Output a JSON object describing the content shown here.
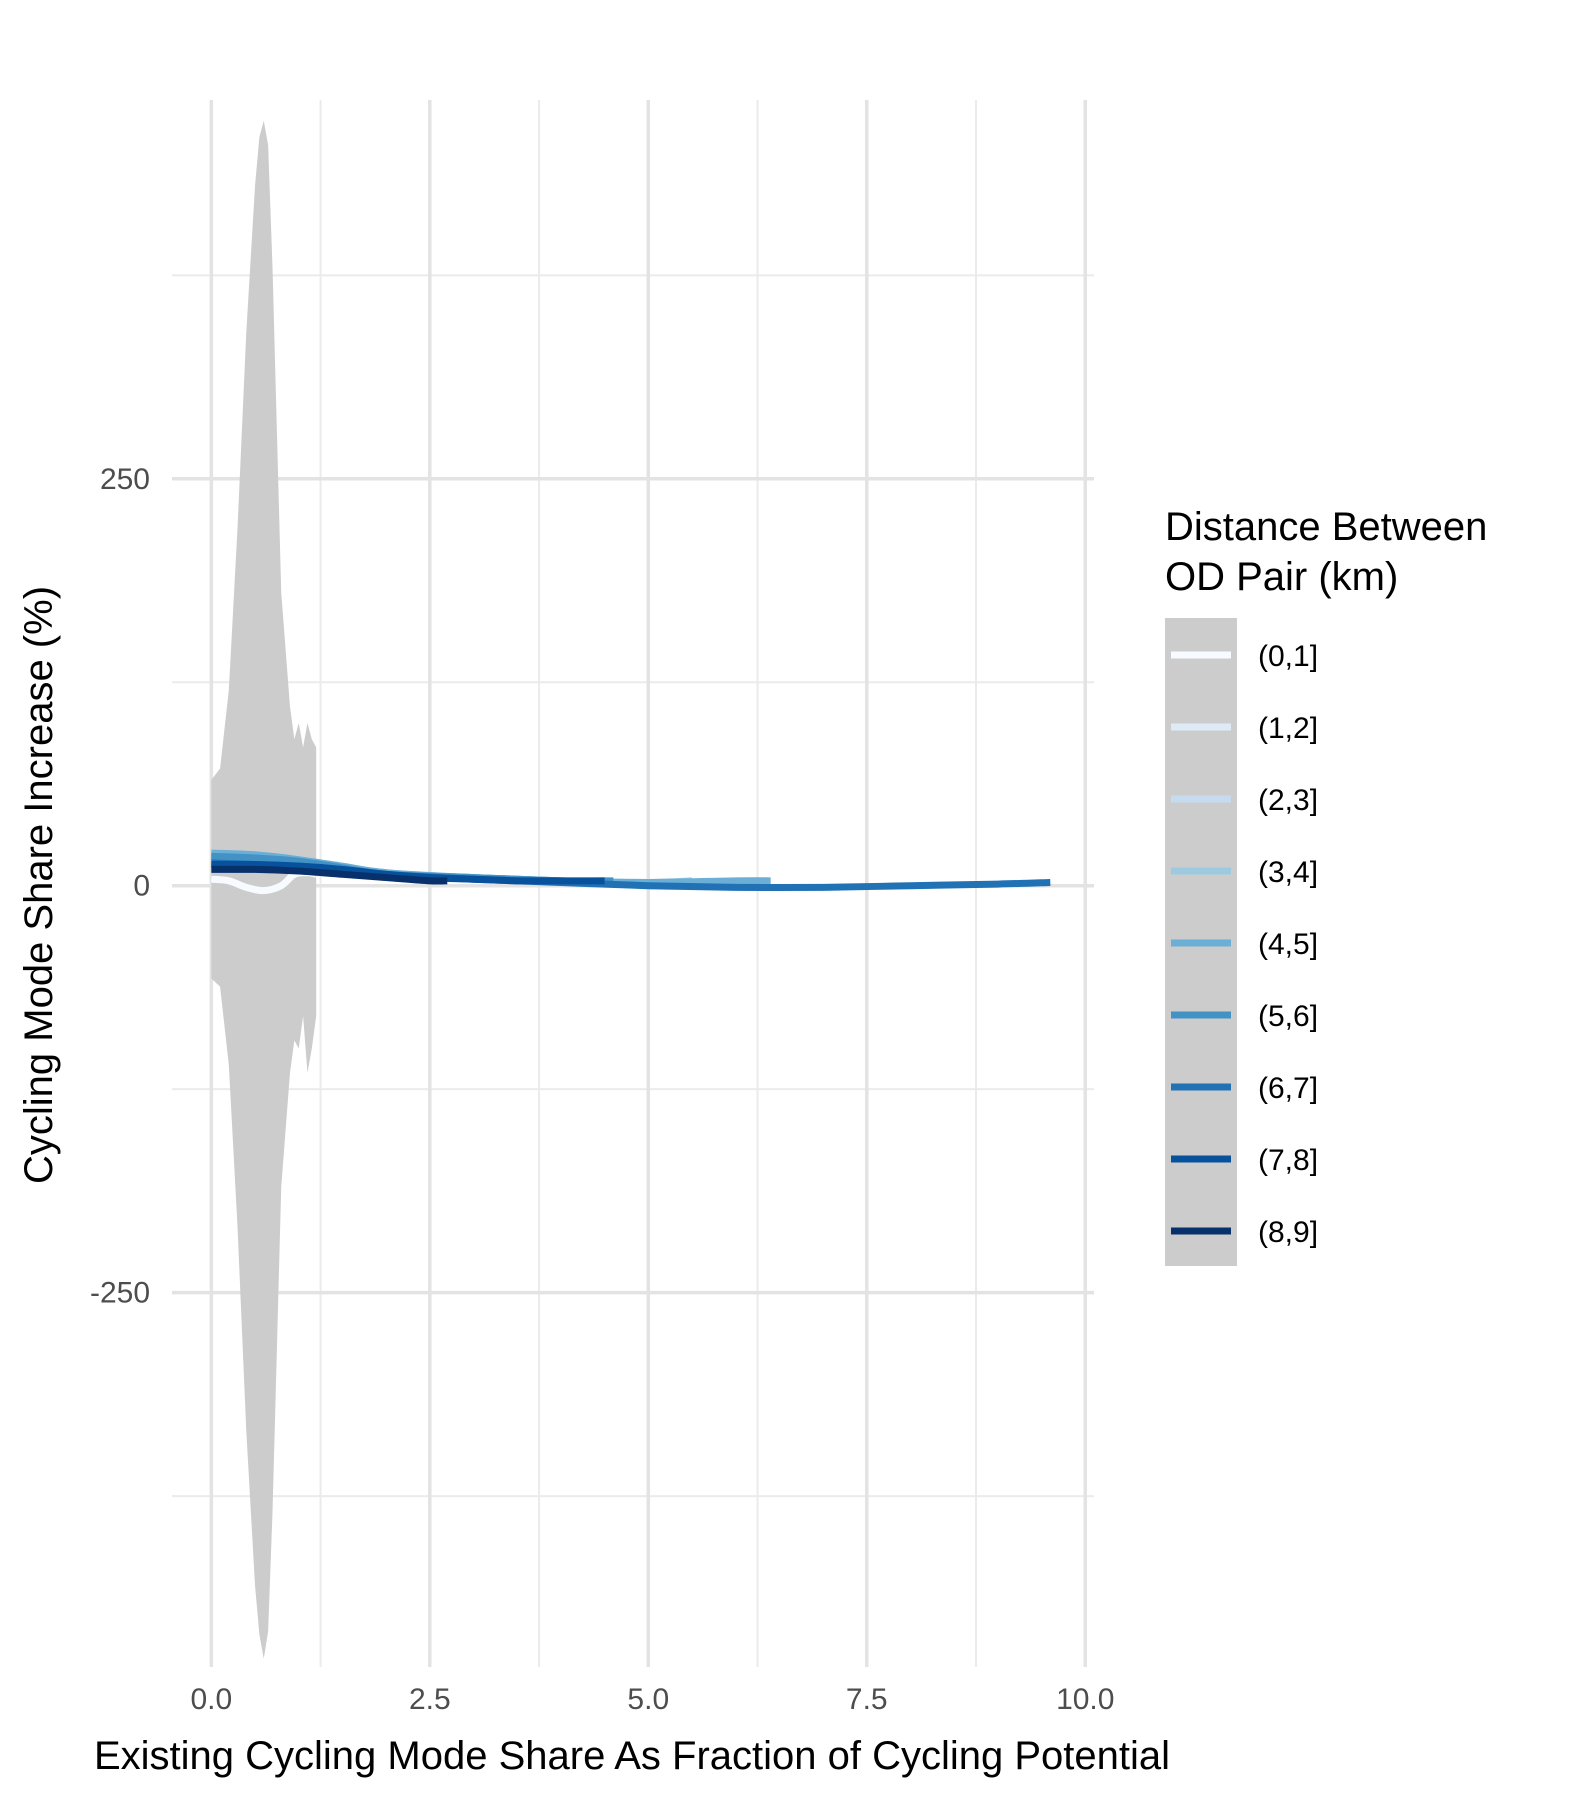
{
  "chart_data": {
    "type": "line",
    "xlabel": "Existing Cycling Mode Share As Fraction of Cycling Potential",
    "ylabel": "Cycling Mode Share Increase (%)",
    "xlim": [
      -0.45,
      10.1
    ],
    "ylim": [
      -480,
      495
    ],
    "x_ticks": [
      0,
      2.5,
      5,
      7.5,
      10
    ],
    "x_tick_labels": [
      "0.0",
      "2.5",
      "5.0",
      "7.5",
      "10.0"
    ],
    "x_minor": [
      1.25,
      3.75,
      6.25,
      8.75
    ],
    "y_ticks": [
      -250,
      0,
      250
    ],
    "y_tick_labels": [
      "-250",
      "0",
      "250"
    ],
    "y_minor": [
      -375,
      -125,
      125,
      375
    ],
    "grid": true,
    "ribbon": {
      "color": "#cccccc",
      "x": [
        0.0,
        0.1,
        0.2,
        0.3,
        0.4,
        0.5,
        0.55,
        0.6,
        0.65,
        0.7,
        0.8,
        0.9,
        0.95,
        1.0,
        1.05,
        1.1,
        1.15,
        1.2
      ],
      "upper": [
        65,
        72,
        120,
        220,
        340,
        430,
        460,
        470,
        455,
        380,
        180,
        110,
        90,
        100,
        85,
        100,
        90,
        85
      ],
      "lower": [
        -57,
        -62,
        -110,
        -210,
        -335,
        -430,
        -460,
        -475,
        -458,
        -385,
        -185,
        -115,
        -95,
        -100,
        -80,
        -115,
        -100,
        -80
      ]
    },
    "legend": {
      "title": [
        "Distance Between",
        "OD Pair (km)"
      ],
      "position": "right"
    },
    "series": [
      {
        "name": "(0,1]",
        "color": "#f7fbff",
        "x": [
          0.0,
          0.2,
          0.4,
          0.6,
          0.8,
          0.95,
          1.1,
          1.2
        ],
        "y": [
          4,
          3,
          -1,
          -3,
          0,
          7,
          8,
          7
        ]
      },
      {
        "name": "(1,2]",
        "color": "#deebf7",
        "x": [
          0.0,
          0.3,
          0.6,
          0.9,
          1.2,
          1.5
        ],
        "y": [
          12,
          12,
          11,
          10,
          8,
          7
        ]
      },
      {
        "name": "(2,3]",
        "color": "#c6dbef",
        "x": [
          0.0,
          0.5,
          1.0,
          1.5,
          2.0
        ],
        "y": [
          15,
          14,
          12,
          9,
          6
        ]
      },
      {
        "name": "(3,4]",
        "color": "#9ecae1",
        "x": [
          0.0,
          0.5,
          1.0,
          1.5,
          2.0,
          2.5,
          3.0,
          4.0,
          5.0,
          5.5
        ],
        "y": [
          17,
          17,
          15,
          11,
          8,
          6,
          5,
          3,
          2,
          3
        ]
      },
      {
        "name": "(4,5]",
        "color": "#6baed6",
        "x": [
          0.0,
          0.5,
          1.0,
          1.5,
          2.0,
          3.0,
          4.0,
          5.0,
          6.0,
          6.4
        ],
        "y": [
          20,
          19,
          16,
          12,
          8,
          5,
          3,
          2,
          3,
          3
        ]
      },
      {
        "name": "(5,6]",
        "color": "#4292c6",
        "x": [
          0.0,
          0.5,
          1.0,
          1.5,
          2.0,
          3.0,
          4.0,
          4.6
        ],
        "y": [
          18,
          17,
          15,
          11,
          7,
          5,
          3,
          3
        ]
      },
      {
        "name": "(6,7]",
        "color": "#2171b5",
        "x": [
          0.0,
          0.5,
          1.0,
          1.5,
          2.0,
          3.0,
          4.0,
          5.0,
          6.0,
          7.0,
          8.0,
          9.0,
          9.6
        ],
        "y": [
          14,
          13,
          12,
          10,
          7,
          4,
          2,
          0,
          -1,
          -1,
          0,
          1,
          2
        ]
      },
      {
        "name": "(7,8]",
        "color": "#08519c",
        "x": [
          0.0,
          0.5,
          1.0,
          1.5,
          2.0,
          2.5,
          3.0,
          3.5,
          4.0,
          4.5
        ],
        "y": [
          13,
          13,
          12,
          10,
          7,
          5,
          4,
          3,
          3,
          3
        ]
      },
      {
        "name": "(8,9]",
        "color": "#08306b",
        "x": [
          0.0,
          0.5,
          1.0,
          1.5,
          2.0,
          2.5,
          2.7
        ],
        "y": [
          10,
          10,
          9,
          7,
          5,
          3,
          3
        ]
      }
    ]
  }
}
